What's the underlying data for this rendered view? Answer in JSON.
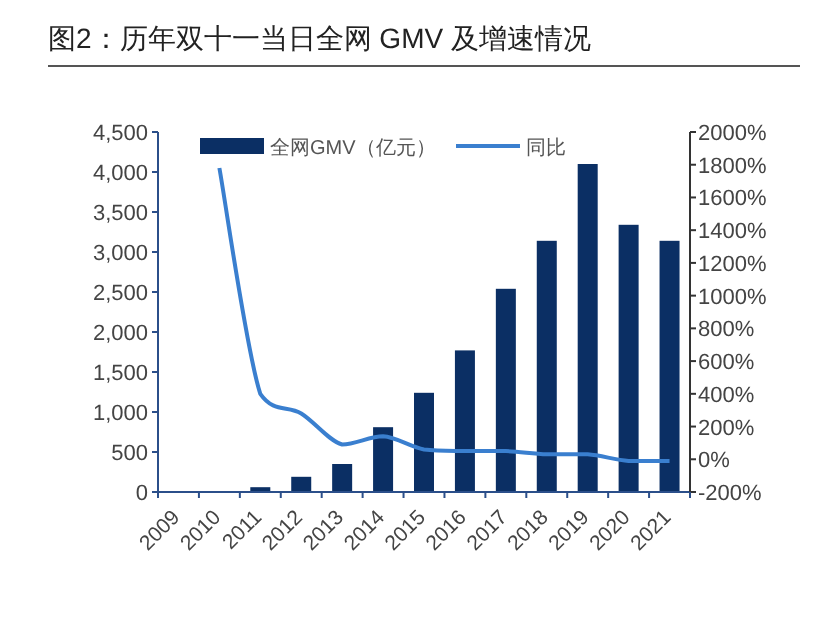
{
  "chart_data": {
    "type": "bar",
    "title": "图2：历年双十一当日全网 GMV 及增速情况",
    "categories": [
      "2009",
      "2010",
      "2011",
      "2012",
      "2013",
      "2014",
      "2015",
      "2016",
      "2017",
      "2018",
      "2019",
      "2020",
      "2021"
    ],
    "series": [
      {
        "name": "全网GMV（亿元）",
        "color": "#0b2f64",
        "values": [
          0,
          0,
          60,
          190,
          350,
          810,
          1240,
          1770,
          2540,
          3140,
          4100,
          3340,
          3140
        ]
      },
      {
        "name": "同比",
        "type": "line",
        "axis": "y2",
        "color": "#3a7fcf",
        "values": [
          null,
          1780,
          400,
          280,
          90,
          140,
          60,
          50,
          50,
          30,
          30,
          -10,
          -10
        ]
      }
    ],
    "ylim": [
      0,
      4500
    ],
    "yticks": [
      {
        "value": 0,
        "label": "0"
      },
      {
        "value": 500,
        "label": "500"
      },
      {
        "value": 1000,
        "label": "1,000"
      },
      {
        "value": 1500,
        "label": "1,500"
      },
      {
        "value": 2000,
        "label": "2,000"
      },
      {
        "value": 2500,
        "label": "2,500"
      },
      {
        "value": 3000,
        "label": "3,000"
      },
      {
        "value": 3500,
        "label": "3,500"
      },
      {
        "value": 4000,
        "label": "4,000"
      },
      {
        "value": 4500,
        "label": "4,500"
      }
    ],
    "y2lim": [
      -200,
      2000
    ],
    "y2ticks": [
      {
        "value": -200,
        "label": "-200%"
      },
      {
        "value": 0,
        "label": "0%"
      },
      {
        "value": 200,
        "label": "200%"
      },
      {
        "value": 400,
        "label": "400%"
      },
      {
        "value": 600,
        "label": "600%"
      },
      {
        "value": 800,
        "label": "800%"
      },
      {
        "value": 1000,
        "label": "1000%"
      },
      {
        "value": 1200,
        "label": "1200%"
      },
      {
        "value": 1400,
        "label": "1400%"
      },
      {
        "value": 1600,
        "label": "1600%"
      },
      {
        "value": 1800,
        "label": "1800%"
      },
      {
        "value": 2000,
        "label": "2000%"
      }
    ],
    "legend": "top",
    "grid": false
  }
}
